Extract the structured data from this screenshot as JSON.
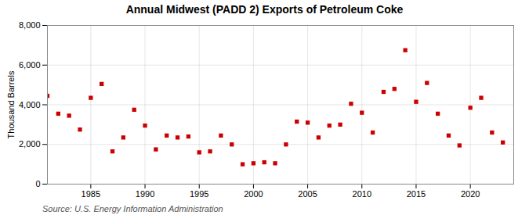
{
  "chart_data": {
    "type": "scatter",
    "title": "Annual Midwest (PADD 2) Exports of Petroleum Coke",
    "ylabel": "Thousand Barrels",
    "source": "Source: U.S. Energy Information Administration",
    "x": [
      1981,
      1982,
      1983,
      1984,
      1985,
      1986,
      1987,
      1988,
      1989,
      1990,
      1991,
      1992,
      1993,
      1994,
      1995,
      1996,
      1997,
      1998,
      1999,
      2000,
      2001,
      2002,
      2003,
      2004,
      2005,
      2006,
      2007,
      2008,
      2009,
      2010,
      2011,
      2012,
      2013,
      2014,
      2015,
      2016,
      2017,
      2018,
      2019,
      2020,
      2021,
      2022,
      2023
    ],
    "values": [
      4450,
      3550,
      3450,
      2750,
      4350,
      5050,
      1650,
      2350,
      3750,
      2950,
      1750,
      2450,
      2350,
      2400,
      1600,
      1650,
      2450,
      2000,
      1000,
      1050,
      1100,
      1050,
      2000,
      3150,
      3100,
      2350,
      2950,
      3000,
      4050,
      3600,
      2600,
      4650,
      4800,
      6750,
      4150,
      5100,
      3550,
      2450,
      1950,
      3850,
      4350,
      2600,
      2100
    ],
    "color": "#cc0000",
    "marker": "square",
    "xlim": [
      1981,
      2024
    ],
    "xticks": [
      1985,
      1990,
      1995,
      2000,
      2005,
      2010,
      2015,
      2020
    ],
    "ylim": [
      0,
      8000
    ],
    "yticks": [
      0,
      {
        "value": 2000,
        "label": "2,000"
      },
      {
        "value": 4000,
        "label": "4,000"
      },
      {
        "value": 6000,
        "label": "6,000"
      },
      {
        "value": 8000,
        "label": "8,000"
      }
    ],
    "grid": true
  }
}
